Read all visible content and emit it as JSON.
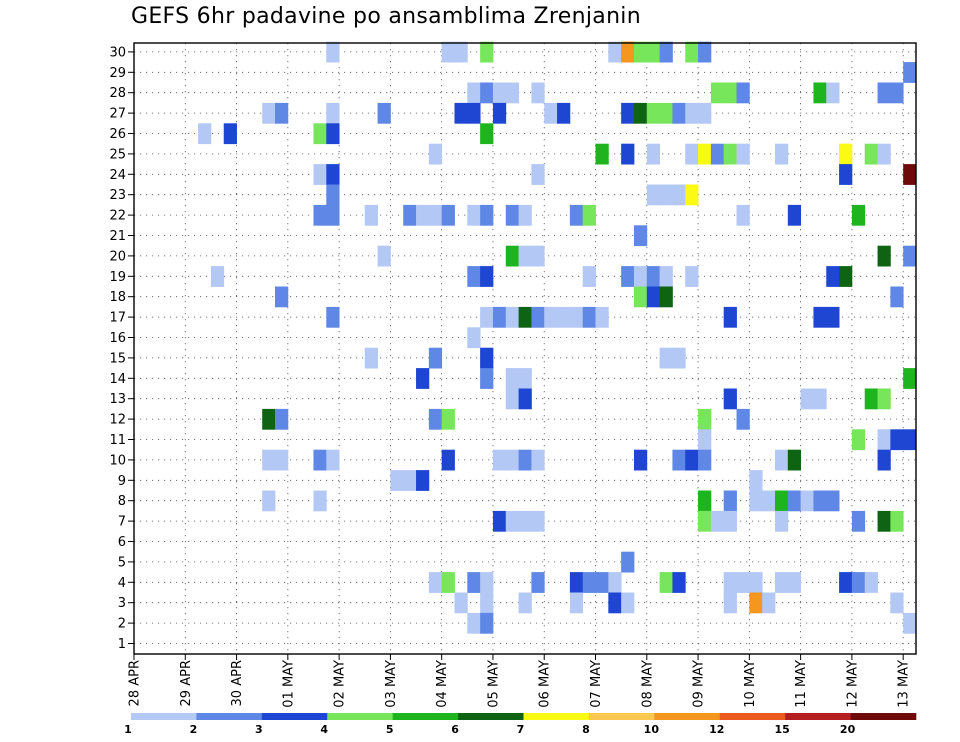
{
  "chart_data": {
    "type": "heatmap",
    "title": "GEFS 6hr padavine po ansamblima Zrenjanin",
    "xlabel": "",
    "ylabel": "",
    "x_tick_labels": [
      "28 APR",
      "29 APR",
      "30 APR",
      "01 MAY",
      "02 MAY",
      "03 MAY",
      "04 MAY",
      "05 MAY",
      "06 MAY",
      "07 MAY",
      "08 MAY",
      "09 MAY",
      "10 MAY",
      "11 MAY",
      "12 MAY",
      "13 MAY"
    ],
    "y_tick_labels": [
      "1",
      "2",
      "3",
      "4",
      "5",
      "6",
      "7",
      "8",
      "9",
      "10",
      "11",
      "12",
      "13",
      "14",
      "15",
      "16",
      "17",
      "18",
      "19",
      "20",
      "21",
      "22",
      "23",
      "24",
      "25",
      "26",
      "27",
      "28",
      "29",
      "30"
    ],
    "time_steps_per_day": 4,
    "n_columns": 61,
    "n_members": 30,
    "grid": true,
    "legend": {
      "placement": "bottom",
      "labels": [
        "1",
        "2",
        "3",
        "4",
        "5",
        "6",
        "7",
        "8",
        "10",
        "12",
        "15",
        "20"
      ],
      "colors": [
        "#b4c8f5",
        "#5f87e6",
        "#1e46d2",
        "#78e65a",
        "#1eb41e",
        "#0f6414",
        "#fafa14",
        "#fac850",
        "#f5961e",
        "#eb5a1e",
        "#b41e1e",
        "#6e0a0a"
      ]
    },
    "cells": [
      {
        "member": 30,
        "values": [
          [
            15,
            1
          ],
          [
            24,
            1
          ],
          [
            25,
            1
          ],
          [
            27,
            4
          ],
          [
            37,
            1
          ],
          [
            38,
            10
          ],
          [
            38,
            10
          ],
          [
            39,
            4
          ],
          [
            40,
            4
          ],
          [
            41,
            2
          ],
          [
            43,
            4
          ],
          [
            44,
            2
          ]
        ]
      },
      {
        "member": 29,
        "values": [
          [
            60,
            2
          ]
        ]
      },
      {
        "member": 28,
        "values": [
          [
            26,
            1
          ],
          [
            27,
            2
          ],
          [
            28,
            1
          ],
          [
            29,
            1
          ],
          [
            31,
            1
          ],
          [
            45,
            4
          ],
          [
            46,
            4
          ],
          [
            47,
            2
          ],
          [
            53,
            5
          ],
          [
            54,
            1
          ],
          [
            58,
            2
          ],
          [
            59,
            2
          ]
        ]
      },
      {
        "member": 27,
        "values": [
          [
            10,
            1
          ],
          [
            11,
            2
          ],
          [
            15,
            1
          ],
          [
            19,
            2
          ],
          [
            25,
            3
          ],
          [
            26,
            3
          ],
          [
            28,
            3
          ],
          [
            32,
            1
          ],
          [
            33,
            3
          ],
          [
            38,
            3
          ],
          [
            39,
            6
          ],
          [
            40,
            4
          ],
          [
            41,
            4
          ],
          [
            42,
            2
          ],
          [
            43,
            1
          ],
          [
            44,
            1
          ]
        ]
      },
      {
        "member": 26,
        "values": [
          [
            5,
            1
          ],
          [
            7,
            3
          ],
          [
            14,
            4
          ],
          [
            15,
            3
          ],
          [
            27,
            5
          ]
        ]
      },
      {
        "member": 25,
        "values": [
          [
            23,
            1
          ],
          [
            36,
            5
          ],
          [
            38,
            3
          ],
          [
            40,
            1
          ],
          [
            43,
            1
          ],
          [
            44,
            7
          ],
          [
            45,
            2
          ],
          [
            46,
            4
          ],
          [
            47,
            1
          ],
          [
            50,
            1
          ],
          [
            55,
            7
          ],
          [
            57,
            4
          ],
          [
            58,
            1
          ]
        ]
      },
      {
        "member": 24,
        "values": [
          [
            14,
            1
          ],
          [
            15,
            3
          ],
          [
            31,
            1
          ],
          [
            55,
            3
          ],
          [
            60,
            20
          ]
        ]
      },
      {
        "member": 23,
        "values": [
          [
            15,
            2
          ],
          [
            40,
            1
          ],
          [
            41,
            1
          ],
          [
            42,
            1
          ],
          [
            43,
            7
          ]
        ]
      },
      {
        "member": 22,
        "values": [
          [
            14,
            2
          ],
          [
            15,
            2
          ],
          [
            18,
            1
          ],
          [
            21,
            2
          ],
          [
            22,
            1
          ],
          [
            23,
            1
          ],
          [
            24,
            2
          ],
          [
            26,
            1
          ],
          [
            27,
            2
          ],
          [
            29,
            2
          ],
          [
            30,
            1
          ],
          [
            34,
            2
          ],
          [
            35,
            4
          ],
          [
            47,
            1
          ],
          [
            51,
            3
          ],
          [
            56,
            5
          ]
        ]
      },
      {
        "member": 21,
        "values": [
          [
            39,
            2
          ]
        ]
      },
      {
        "member": 20,
        "values": [
          [
            19,
            1
          ],
          [
            29,
            5
          ],
          [
            30,
            1
          ],
          [
            31,
            1
          ],
          [
            58,
            6
          ],
          [
            60,
            2
          ]
        ]
      },
      {
        "member": 19,
        "values": [
          [
            6,
            1
          ],
          [
            26,
            2
          ],
          [
            27,
            3
          ],
          [
            35,
            1
          ],
          [
            38,
            2
          ],
          [
            39,
            1
          ],
          [
            40,
            2
          ],
          [
            41,
            1
          ],
          [
            43,
            1
          ],
          [
            54,
            3
          ],
          [
            55,
            6
          ]
        ]
      },
      {
        "member": 18,
        "values": [
          [
            11,
            2
          ],
          [
            39,
            4
          ],
          [
            40,
            3
          ],
          [
            41,
            6
          ],
          [
            59,
            2
          ]
        ]
      },
      {
        "member": 17,
        "values": [
          [
            15,
            2
          ],
          [
            27,
            1
          ],
          [
            28,
            2
          ],
          [
            29,
            1
          ],
          [
            30,
            6
          ],
          [
            31,
            2
          ],
          [
            32,
            1
          ],
          [
            33,
            1
          ],
          [
            34,
            1
          ],
          [
            35,
            2
          ],
          [
            36,
            1
          ],
          [
            46,
            3
          ],
          [
            53,
            3
          ],
          [
            54,
            3
          ]
        ]
      },
      {
        "member": 16,
        "values": [
          [
            26,
            1
          ]
        ]
      },
      {
        "member": 15,
        "values": [
          [
            18,
            1
          ],
          [
            23,
            2
          ],
          [
            27,
            3
          ],
          [
            41,
            1
          ],
          [
            42,
            1
          ]
        ]
      },
      {
        "member": 14,
        "values": [
          [
            22,
            3
          ],
          [
            27,
            2
          ],
          [
            29,
            1
          ],
          [
            30,
            1
          ],
          [
            60,
            5
          ]
        ]
      },
      {
        "member": 13,
        "values": [
          [
            29,
            1
          ],
          [
            30,
            3
          ],
          [
            46,
            3
          ],
          [
            52,
            1
          ],
          [
            53,
            1
          ],
          [
            57,
            5
          ],
          [
            58,
            4
          ]
        ]
      },
      {
        "member": 12,
        "values": [
          [
            10,
            6
          ],
          [
            11,
            2
          ],
          [
            23,
            2
          ],
          [
            24,
            4
          ],
          [
            44,
            4
          ],
          [
            47,
            2
          ]
        ]
      },
      {
        "member": 11,
        "values": [
          [
            44,
            1
          ],
          [
            56,
            4
          ],
          [
            58,
            1
          ],
          [
            59,
            3
          ],
          [
            60,
            3
          ]
        ]
      },
      {
        "member": 10,
        "values": [
          [
            10,
            1
          ],
          [
            11,
            1
          ],
          [
            14,
            2
          ],
          [
            15,
            1
          ],
          [
            24,
            3
          ],
          [
            28,
            1
          ],
          [
            29,
            1
          ],
          [
            30,
            2
          ],
          [
            31,
            1
          ],
          [
            39,
            3
          ],
          [
            42,
            2
          ],
          [
            43,
            3
          ],
          [
            44,
            2
          ],
          [
            50,
            1
          ],
          [
            51,
            6
          ],
          [
            58,
            3
          ]
        ]
      },
      {
        "member": 9,
        "values": [
          [
            20,
            1
          ],
          [
            21,
            1
          ],
          [
            22,
            3
          ],
          [
            48,
            1
          ]
        ]
      },
      {
        "member": 8,
        "values": [
          [
            10,
            1
          ],
          [
            14,
            1
          ],
          [
            44,
            5
          ],
          [
            46,
            2
          ],
          [
            48,
            1
          ],
          [
            49,
            1
          ],
          [
            50,
            5
          ],
          [
            51,
            2
          ],
          [
            52,
            1
          ],
          [
            53,
            2
          ],
          [
            54,
            2
          ]
        ]
      },
      {
        "member": 7,
        "values": [
          [
            28,
            3
          ],
          [
            29,
            1
          ],
          [
            30,
            1
          ],
          [
            31,
            1
          ],
          [
            44,
            4
          ],
          [
            45,
            1
          ],
          [
            46,
            1
          ],
          [
            50,
            1
          ],
          [
            56,
            2
          ],
          [
            58,
            6
          ],
          [
            59,
            4
          ]
        ]
      },
      {
        "member": 6,
        "values": []
      },
      {
        "member": 5,
        "values": [
          [
            38,
            2
          ]
        ]
      },
      {
        "member": 4,
        "values": [
          [
            23,
            1
          ],
          [
            24,
            4
          ],
          [
            26,
            2
          ],
          [
            27,
            1
          ],
          [
            31,
            2
          ],
          [
            34,
            3
          ],
          [
            35,
            2
          ],
          [
            36,
            2
          ],
          [
            37,
            1
          ],
          [
            41,
            4
          ],
          [
            42,
            3
          ],
          [
            46,
            1
          ],
          [
            47,
            1
          ],
          [
            48,
            1
          ],
          [
            50,
            1
          ],
          [
            51,
            1
          ],
          [
            55,
            3
          ],
          [
            56,
            2
          ],
          [
            57,
            1
          ]
        ]
      },
      {
        "member": 3,
        "values": [
          [
            25,
            1
          ],
          [
            27,
            1
          ],
          [
            30,
            1
          ],
          [
            34,
            1
          ],
          [
            37,
            3
          ],
          [
            38,
            1
          ],
          [
            46,
            1
          ],
          [
            48,
            10
          ],
          [
            49,
            1
          ],
          [
            59,
            1
          ]
        ]
      },
      {
        "member": 2,
        "values": [
          [
            26,
            1
          ],
          [
            27,
            2
          ],
          [
            60,
            1
          ]
        ]
      }
    ]
  }
}
